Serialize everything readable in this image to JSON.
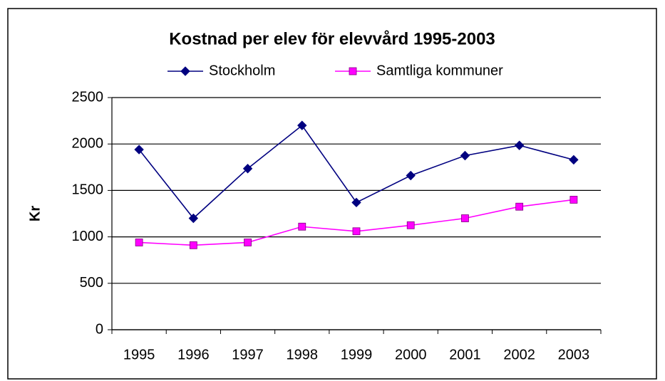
{
  "chart_data": {
    "type": "line",
    "title": "Kostnad per elev för elevvård 1995-2003",
    "y_label": "Kr",
    "categories": [
      "1995",
      "1996",
      "1997",
      "1998",
      "1999",
      "2000",
      "2001",
      "2002",
      "2003"
    ],
    "series": [
      {
        "name": "Stockholm",
        "color": "#000080",
        "marker": "diamond",
        "values": [
          1940,
          1200,
          1735,
          2200,
          1370,
          1660,
          1875,
          1985,
          1830
        ]
      },
      {
        "name": "Samtliga kommuner",
        "color": "#ff00ff",
        "marker": "square",
        "values": [
          940,
          910,
          940,
          1110,
          1060,
          1125,
          1200,
          1325,
          1400
        ]
      }
    ],
    "ylim": [
      0,
      2500
    ],
    "yticks": [
      0,
      500,
      1000,
      1500,
      2000,
      2500
    ],
    "grid": true,
    "legend": "top"
  }
}
